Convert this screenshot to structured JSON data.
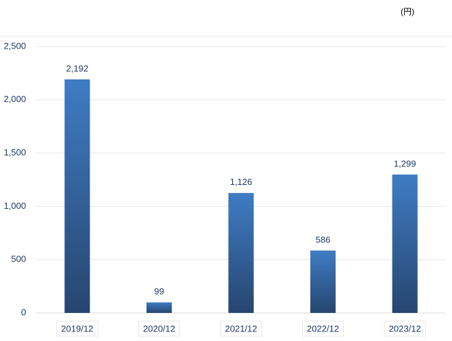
{
  "chart_data": {
    "type": "bar",
    "unit": "(円)",
    "categories": [
      "2019/12",
      "2020/12",
      "2021/12",
      "2022/12",
      "2023/12"
    ],
    "values": [
      2192,
      99,
      1126,
      586,
      1299
    ],
    "value_labels": [
      "2,192",
      "99",
      "1,126",
      "586",
      "1,299"
    ],
    "color": "#3f7cc4",
    "ylim": [
      0,
      2500
    ],
    "yticks": [
      0,
      500,
      {
        "value": 1000,
        "label": "1,000"
      },
      {
        "value": 1500,
        "label": "1,500"
      },
      {
        "value": 2000,
        "label": "2,000"
      },
      {
        "value": 2500,
        "label": "2,500"
      }
    ],
    "grid": true
  }
}
